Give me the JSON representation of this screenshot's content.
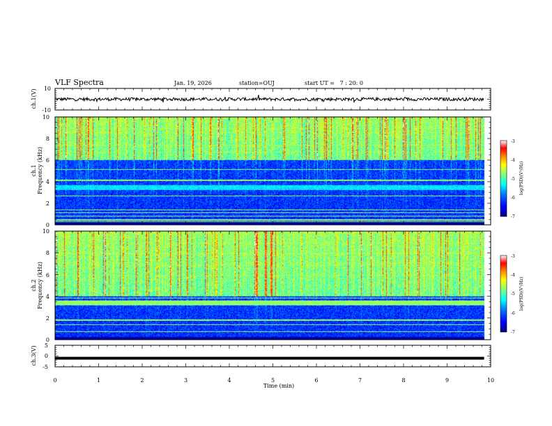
{
  "header": {
    "title": "VLF Spectra",
    "date": "Jan. 19, 2026",
    "station": "station=OUJ",
    "start_ut": "start UT =   7 : 20: 0"
  },
  "chart_data": {
    "type": "heatmap",
    "title": "VLF Spectra",
    "xlabel": "Time (min)",
    "xlim": [
      0,
      10
    ],
    "x_ticks": [
      "0",
      "1",
      "2",
      "3",
      "4",
      "5",
      "6",
      "7",
      "8",
      "9",
      "10"
    ],
    "data_end_min": 9.85,
    "panels": [
      {
        "id": "ch1-waveform",
        "kind": "waveform",
        "ylabel": "ch.1(V)",
        "ylim": [
          -10,
          10
        ],
        "y_ticks": [
          "10",
          "-10"
        ],
        "baseline": 0,
        "amplitude": 1.5,
        "color": "#000000"
      },
      {
        "id": "ch1-spectrogram",
        "kind": "spectrogram",
        "ylabel_line1": "ch.1",
        "ylabel_line2": "Frequency (kHz)",
        "ylim": [
          0,
          10
        ],
        "y_ticks": [
          "0",
          "2",
          "4",
          "6",
          "8",
          "10"
        ],
        "band_edge_khz": 6.0,
        "noise_band_khz": [
          3.3,
          3.7
        ],
        "colorbar": {
          "label": "log(PSD)(V²/Hz)",
          "range": [
            -7,
            -3
          ],
          "ticks": [
            "-3",
            "-4",
            "-5",
            "-6",
            "-7"
          ]
        }
      },
      {
        "id": "ch2-spectrogram",
        "kind": "spectrogram",
        "ylabel_line1": "ch.2",
        "ylabel_line2": "Frequency (kHz)",
        "ylim": [
          0,
          10
        ],
        "y_ticks": [
          "0",
          "2",
          "4",
          "6",
          "8",
          "10"
        ],
        "band_edge_khz": 4.0,
        "noise_band_khz": [
          3.2,
          3.6
        ],
        "colorbar": {
          "label": "log(PSD)(V²/Hz)",
          "range": [
            -7,
            -3
          ],
          "ticks": [
            "-3",
            "-4",
            "-5",
            "-6",
            "-7"
          ]
        }
      },
      {
        "id": "ch3-waveform",
        "kind": "waveform",
        "ylabel": "ch.3(V)",
        "ylim": [
          -5,
          5
        ],
        "y_ticks": [
          "5",
          "0",
          "-5"
        ],
        "baseline": -1,
        "amplitude": 0,
        "color": "#000000"
      }
    ],
    "colormap": [
      "#00007f",
      "#0000ff",
      "#007fff",
      "#00ffff",
      "#7fff7f",
      "#ffff00",
      "#ff7f00",
      "#ff0000",
      "#ffffff"
    ]
  }
}
